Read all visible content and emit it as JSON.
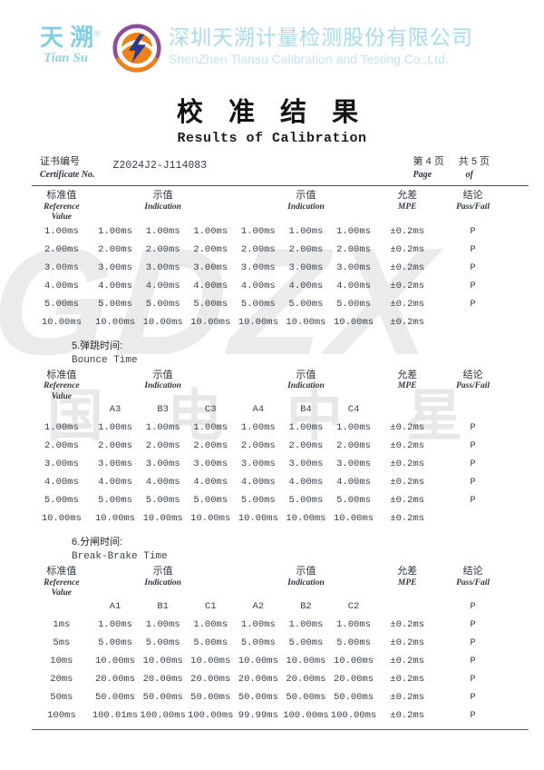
{
  "company": {
    "logo_zh": "天 溯",
    "reg_mark": "®",
    "logo_pinyin": "Tian Su",
    "name_zh": "深圳天溯计量检测股份有限公司",
    "name_en": "ShenZhen Tiansu Calibration and Testing Co.,Ltd."
  },
  "title": {
    "zh": "校 准 结 果",
    "en": "Results of Calibration"
  },
  "certificate": {
    "label_zh": "证书编号",
    "label_en": "Certificate No.",
    "number": "Z2024J2-J114083"
  },
  "pagination": {
    "page_zh": "第 4 页",
    "total_zh": "共 5 页",
    "page_en": "Page",
    "of_en": "of"
  },
  "watermark": {
    "line1": "GDZX",
    "line2": "国电中星"
  },
  "table_header": {
    "ref_zh": "标准值",
    "ref_en": [
      "Reference",
      "Value"
    ],
    "ind_zh": "示值",
    "ind_en": "Indication",
    "mpe_zh": "允差",
    "mpe_en": "MPE",
    "pass_zh": "结论",
    "pass_en": "Pass/Fail"
  },
  "sections": [
    {
      "label_zh": "5.弹跳时间:",
      "label_en": "Bounce Time"
    },
    {
      "label_zh": "6.分闸时间:",
      "label_en": "Break-Brake Time"
    }
  ],
  "tables": [
    {
      "name": "pull-in-time-continued",
      "subheader": null,
      "rows": [
        [
          "1.00ms",
          "1.00ms",
          "1.00ms",
          "1.00ms",
          "1.00ms",
          "1.00ms",
          "1.00ms",
          "±0.2ms",
          "P"
        ],
        [
          "2.00ms",
          "2.00ms",
          "2.00ms",
          "2.00ms",
          "2.00ms",
          "2.00ms",
          "2.00ms",
          "±0.2ms",
          "P"
        ],
        [
          "3.00ms",
          "3.00ms",
          "3.00ms",
          "3.00ms",
          "3.00ms",
          "3.00ms",
          "3.00ms",
          "±0.2ms",
          "P"
        ],
        [
          "4.00ms",
          "4.00ms",
          "4.00ms",
          "4.00ms",
          "4.00ms",
          "4.00ms",
          "4.00ms",
          "±0.2ms",
          "P"
        ],
        [
          "5.00ms",
          "5.00ms",
          "5.00ms",
          "5.00ms",
          "5.00ms",
          "5.00ms",
          "5.00ms",
          "±0.2ms",
          "P"
        ],
        [
          "10.00ms",
          "10.00ms",
          "10.00ms",
          "10.00ms",
          "10.00ms",
          "10.00ms",
          "10.00ms",
          "±0.2ms",
          ""
        ]
      ]
    },
    {
      "name": "bounce-time",
      "subheader": [
        "",
        "A3",
        "B3",
        "C3",
        "A4",
        "B4",
        "C4",
        "",
        ""
      ],
      "rows": [
        [
          "1.00ms",
          "1.00ms",
          "1.00ms",
          "1.00ms",
          "1.00ms",
          "1.00ms",
          "1.00ms",
          "±0.2ms",
          "P"
        ],
        [
          "2.00ms",
          "2.00ms",
          "2.00ms",
          "2.00ms",
          "2.00ms",
          "2.00ms",
          "2.00ms",
          "±0.2ms",
          "P"
        ],
        [
          "3.00ms",
          "3.00ms",
          "3.00ms",
          "3.00ms",
          "3.00ms",
          "3.00ms",
          "3.00ms",
          "±0.2ms",
          "P"
        ],
        [
          "4.00ms",
          "4.00ms",
          "4.00ms",
          "4.00ms",
          "4.00ms",
          "4.00ms",
          "4.00ms",
          "±0.2ms",
          "P"
        ],
        [
          "5.00ms",
          "5.00ms",
          "5.00ms",
          "5.00ms",
          "5.00ms",
          "5.00ms",
          "5.00ms",
          "±0.2ms",
          "P"
        ],
        [
          "10.00ms",
          "10.00ms",
          "10.00ms",
          "10.00ms",
          "10.00ms",
          "10.00ms",
          "10.00ms",
          "±0.2ms",
          ""
        ]
      ]
    },
    {
      "name": "break-brake-time",
      "subheader": [
        "",
        "A1",
        "B1",
        "C1",
        "A2",
        "B2",
        "C2",
        "",
        "P"
      ],
      "rows": [
        [
          "1ms",
          "1.00ms",
          "1.00ms",
          "1.00ms",
          "1.00ms",
          "1.00ms",
          "1.00ms",
          "±0.2ms",
          "P"
        ],
        [
          "5ms",
          "5.00ms",
          "5.00ms",
          "5.00ms",
          "5.00ms",
          "5.00ms",
          "5.00ms",
          "±0.2ms",
          "P"
        ],
        [
          "10ms",
          "10.00ms",
          "10.00ms",
          "10.00ms",
          "10.00ms",
          "10.00ms",
          "10.00ms",
          "±0.2ms",
          "P"
        ],
        [
          "20ms",
          "20.00ms",
          "20.00ms",
          "20.00ms",
          "20.00ms",
          "20.00ms",
          "20.00ms",
          "±0.2ms",
          "P"
        ],
        [
          "50ms",
          "50.00ms",
          "50.00ms",
          "50.00ms",
          "50.00ms",
          "50.00ms",
          "50.00ms",
          "±0.2ms",
          "P"
        ],
        [
          "100ms",
          "100.01ms",
          "100.00ms",
          "100.00ms",
          "99.99ms",
          "100.00ms",
          "100.00ms",
          "±0.2ms",
          "P"
        ]
      ]
    }
  ]
}
